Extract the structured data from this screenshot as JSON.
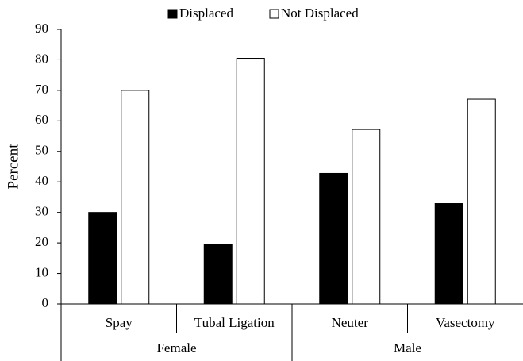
{
  "chart_data": {
    "type": "bar",
    "y_label": "Percent",
    "categories": [
      "Spay",
      "Tubal Ligation",
      "Neuter",
      "Vasectomy"
    ],
    "groups": [
      "Female",
      "Male"
    ],
    "series": [
      {
        "name": "Displaced",
        "color": "#000000",
        "values": [
          30,
          19.5,
          42.8,
          32.9
        ]
      },
      {
        "name": "Not Displaced",
        "color": "#ffffff",
        "values": [
          70,
          80.5,
          57.2,
          67.1
        ]
      }
    ],
    "ylim": [
      0,
      90
    ],
    "yticks": [
      0,
      10,
      20,
      30,
      40,
      50,
      60,
      70,
      80,
      90
    ],
    "grid": false,
    "legend": "top"
  }
}
